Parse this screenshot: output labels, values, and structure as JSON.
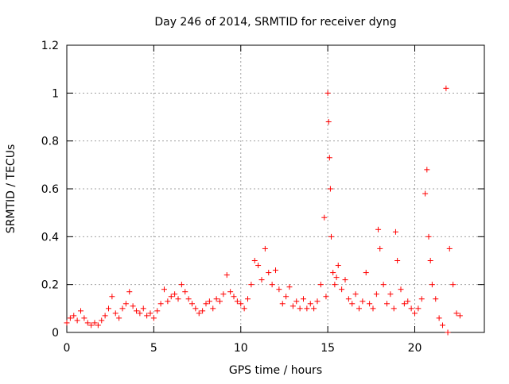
{
  "chart_data": {
    "type": "scatter",
    "title": "Day 246 of 2014, SRMTID for receiver dyng",
    "xlabel": "GPS time / hours",
    "ylabel": "SRMTID / TECUs",
    "xlim": [
      0,
      24
    ],
    "ylim": [
      0,
      1.2
    ],
    "xticks": [
      0,
      5,
      10,
      15,
      20
    ],
    "xtick_labels": [
      "0",
      "5",
      "10",
      "15",
      "20"
    ],
    "yticks": [
      0,
      0.2,
      0.4,
      0.6,
      0.8,
      1,
      1.2
    ],
    "ytick_labels": [
      "0",
      "0.2",
      "0.4",
      "0.6",
      "0.8",
      "1",
      "1.2"
    ],
    "grid": true,
    "marker": "+",
    "marker_color": "#ff0000",
    "series": [
      {
        "name": "SRMTID",
        "x": [
          0.0,
          0.2,
          0.4,
          0.6,
          0.8,
          1.0,
          1.2,
          1.4,
          1.6,
          1.8,
          2.0,
          2.2,
          2.4,
          2.6,
          2.8,
          3.0,
          3.2,
          3.4,
          3.6,
          3.8,
          4.0,
          4.2,
          4.4,
          4.6,
          4.8,
          5.0,
          5.2,
          5.4,
          5.6,
          5.8,
          6.0,
          6.2,
          6.4,
          6.6,
          6.8,
          7.0,
          7.2,
          7.4,
          7.6,
          7.8,
          8.0,
          8.2,
          8.4,
          8.6,
          8.8,
          9.0,
          9.2,
          9.4,
          9.6,
          9.8,
          10.0,
          10.2,
          10.4,
          10.6,
          10.8,
          11.0,
          11.2,
          11.4,
          11.6,
          11.8,
          12.0,
          12.2,
          12.4,
          12.6,
          12.8,
          13.0,
          13.2,
          13.4,
          13.6,
          13.8,
          14.0,
          14.2,
          14.4,
          14.6,
          14.8,
          14.9,
          15.0,
          15.05,
          15.1,
          15.15,
          15.2,
          15.3,
          15.4,
          15.5,
          15.6,
          15.8,
          16.0,
          16.2,
          16.4,
          16.6,
          16.8,
          17.0,
          17.2,
          17.4,
          17.6,
          17.8,
          17.9,
          18.0,
          18.2,
          18.4,
          18.6,
          18.8,
          18.9,
          19.0,
          19.2,
          19.4,
          19.6,
          19.8,
          20.0,
          20.2,
          20.4,
          20.6,
          20.7,
          20.8,
          20.9,
          21.0,
          21.2,
          21.4,
          21.6,
          21.8,
          21.9,
          22.0,
          22.2,
          22.4,
          22.6
        ],
        "y": [
          0.04,
          0.06,
          0.07,
          0.05,
          0.09,
          0.06,
          0.04,
          0.03,
          0.04,
          0.03,
          0.05,
          0.07,
          0.1,
          0.15,
          0.08,
          0.06,
          0.1,
          0.12,
          0.17,
          0.11,
          0.09,
          0.08,
          0.1,
          0.07,
          0.08,
          0.06,
          0.09,
          0.12,
          0.18,
          0.13,
          0.15,
          0.16,
          0.14,
          0.2,
          0.17,
          0.14,
          0.12,
          0.1,
          0.08,
          0.09,
          0.12,
          0.13,
          0.1,
          0.14,
          0.13,
          0.16,
          0.24,
          0.17,
          0.15,
          0.13,
          0.12,
          0.1,
          0.14,
          0.2,
          0.3,
          0.28,
          0.22,
          0.35,
          0.25,
          0.2,
          0.26,
          0.18,
          0.12,
          0.15,
          0.19,
          0.11,
          0.13,
          0.1,
          0.14,
          0.1,
          0.12,
          0.1,
          0.13,
          0.2,
          0.48,
          0.15,
          1.0,
          0.88,
          0.73,
          0.6,
          0.4,
          0.25,
          0.2,
          0.23,
          0.28,
          0.18,
          0.22,
          0.14,
          0.12,
          0.16,
          0.1,
          0.13,
          0.25,
          0.12,
          0.1,
          0.16,
          0.43,
          0.35,
          0.2,
          0.12,
          0.16,
          0.1,
          0.42,
          0.3,
          0.18,
          0.12,
          0.13,
          0.1,
          0.08,
          0.1,
          0.14,
          0.58,
          0.68,
          0.4,
          0.3,
          0.2,
          0.14,
          0.06,
          0.03,
          1.02,
          0.0,
          0.35,
          0.2,
          0.08,
          0.07
        ]
      }
    ]
  }
}
